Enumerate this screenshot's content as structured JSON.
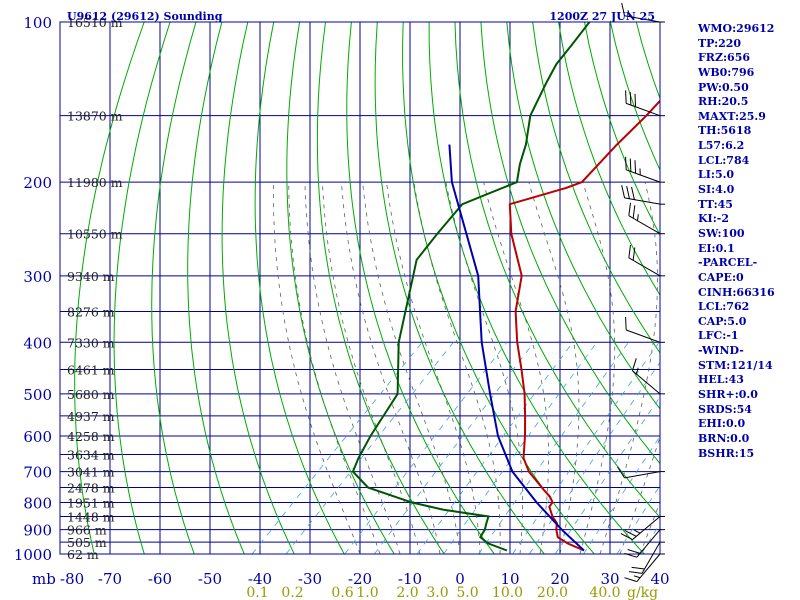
{
  "header": {
    "title": "U9612 (29612) Sounding",
    "time": "1200Z 27 JUN 25"
  },
  "stats": [
    "WMO:29612",
    "TP:220",
    "FRZ:656",
    "WB0:796",
    "PW:0.50",
    "RH:20.5",
    "MAXT:25.9",
    "TH:5618",
    "L57:6.2",
    "LCL:784",
    "LI:5.0",
    "SI:4.0",
    "TT:45",
    "KI:-2",
    "SW:100",
    "EI:0.1",
    "-PARCEL-",
    "CAPE:0",
    "CINH:66316",
    "LCL:762",
    "CAP:5.0",
    "LFC:-1",
    "-WIND-",
    "STM:121/14",
    "HEL:43",
    "SHR+:0.0",
    "SRDS:54",
    "EHI:0.0",
    "BRN:0.0",
    "BSHR:15"
  ],
  "colors": {
    "frame": "#0000aa",
    "isotherm": "#00009a",
    "dry_adiabat": "#00aa00",
    "moist_adiabat": "#556655",
    "mixing_ratio": "#4aa0d0",
    "temperature": "#bb0000",
    "dewpoint": "#005500",
    "parcel": "#0000aa",
    "wind_barb": "#000000",
    "mixing_label": "#999900"
  },
  "chart_data": {
    "type": "skew-t",
    "x_axis_unit_label": "mb",
    "x_ticks": [
      -80,
      -70,
      -60,
      -50,
      -40,
      -30,
      -20,
      -10,
      0,
      10,
      20,
      30,
      40
    ],
    "pressure_ticks": [
      100,
      200,
      300,
      400,
      500,
      600,
      700,
      800,
      900,
      1000
    ],
    "pressure_range": [
      100,
      1000
    ],
    "temperature_range_at_1000mb": [
      -80,
      40
    ],
    "height_labels": [
      {
        "p": 100,
        "label": "16510 m"
      },
      {
        "p": 150,
        "label": "13870 m"
      },
      {
        "p": 200,
        "label": "11980 m"
      },
      {
        "p": 250,
        "label": "10550 m"
      },
      {
        "p": 300,
        "label": "9340 m"
      },
      {
        "p": 350,
        "label": "8276 m"
      },
      {
        "p": 400,
        "label": "7330 m"
      },
      {
        "p": 450,
        "label": "6461 m"
      },
      {
        "p": 500,
        "label": "5680 m"
      },
      {
        "p": 550,
        "label": "4937 m"
      },
      {
        "p": 600,
        "label": "4258 m"
      },
      {
        "p": 650,
        "label": "3634 m"
      },
      {
        "p": 700,
        "label": "3041 m"
      },
      {
        "p": 750,
        "label": "2478 m"
      },
      {
        "p": 800,
        "label": "1951 m"
      },
      {
        "p": 850,
        "label": "1448 m"
      },
      {
        "p": 900,
        "label": "966 m"
      },
      {
        "p": 950,
        "label": "505 m"
      },
      {
        "p": 1000,
        "label": "62 m"
      }
    ],
    "mixing_ratio_labels": [
      {
        "label": "0.1",
        "t": -40.5
      },
      {
        "label": "0.2",
        "t": -33.5
      },
      {
        "label": "0.6",
        "t": -23.5
      },
      {
        "label": "1.0",
        "t": -18.5
      },
      {
        "label": "2.0",
        "t": -10.5
      },
      {
        "label": "3.0",
        "t": -4.5
      },
      {
        "label": "5.0",
        "t": 1.5
      },
      {
        "label": "10.0",
        "t": 9.5
      },
      {
        "label": "20.0",
        "t": 18.5
      },
      {
        "label": "40.0",
        "t": 29.0
      }
    ],
    "mixing_ratio_unit": "g/kg",
    "series": [
      {
        "id": "temperature",
        "points": [
          {
            "p": 985,
            "t": 24.1
          },
          {
            "p": 955,
            "t": 19.4
          },
          {
            "p": 930,
            "t": 16.2
          },
          {
            "p": 900,
            "t": 14.4
          },
          {
            "p": 875,
            "t": 13.2
          },
          {
            "p": 850,
            "t": 11.0
          },
          {
            "p": 815,
            "t": 8.4
          },
          {
            "p": 800,
            "t": 8.2
          },
          {
            "p": 780,
            "t": 6.5
          },
          {
            "p": 760,
            "t": 4.2
          },
          {
            "p": 700,
            "t": -2.7
          },
          {
            "p": 660,
            "t": -6.5
          },
          {
            "p": 600,
            "t": -10.6
          },
          {
            "p": 550,
            "t": -14.6
          },
          {
            "p": 500,
            "t": -19.1
          },
          {
            "p": 450,
            "t": -24.6
          },
          {
            "p": 400,
            "t": -30.9
          },
          {
            "p": 350,
            "t": -37.4
          },
          {
            "p": 300,
            "t": -43.3
          },
          {
            "p": 250,
            "t": -53.8
          },
          {
            "p": 220,
            "t": -60.0
          },
          {
            "p": 205,
            "t": -52.0
          },
          {
            "p": 200,
            "t": -50.0
          },
          {
            "p": 170,
            "t": -50.5
          },
          {
            "p": 150,
            "t": -50.4
          },
          {
            "p": 130,
            "t": -50.9
          },
          {
            "p": 110,
            "t": -52.0
          },
          {
            "p": 100,
            "t": -52.0
          }
        ]
      },
      {
        "id": "dewpoint",
        "points": [
          {
            "p": 985,
            "t": 8.7
          },
          {
            "p": 955,
            "t": 3.5
          },
          {
            "p": 930,
            "t": 0.7
          },
          {
            "p": 900,
            "t": 0.1
          },
          {
            "p": 875,
            "t": -0.9
          },
          {
            "p": 850,
            "t": -1.8
          },
          {
            "p": 825,
            "t": -12.3
          },
          {
            "p": 800,
            "t": -20.0
          },
          {
            "p": 750,
            "t": -31.7
          },
          {
            "p": 700,
            "t": -37.9
          },
          {
            "p": 660,
            "t": -39.5
          },
          {
            "p": 600,
            "t": -41.5
          },
          {
            "p": 500,
            "t": -44.5
          },
          {
            "p": 400,
            "t": -54.6
          },
          {
            "p": 300,
            "t": -65.0
          },
          {
            "p": 280,
            "t": -67.5
          },
          {
            "p": 250,
            "t": -68.6
          },
          {
            "p": 220,
            "t": -69.5
          },
          {
            "p": 200,
            "t": -63.0
          },
          {
            "p": 185,
            "t": -66.0
          },
          {
            "p": 170,
            "t": -68.7
          },
          {
            "p": 150,
            "t": -73.6
          },
          {
            "p": 130,
            "t": -77.0
          },
          {
            "p": 120,
            "t": -78.7
          },
          {
            "p": 110,
            "t": -79.5
          },
          {
            "p": 100,
            "t": -80.5
          }
        ]
      },
      {
        "id": "parcel",
        "points": [
          {
            "p": 985,
            "t": 24.1
          },
          {
            "p": 900,
            "t": 15.5
          },
          {
            "p": 800,
            "t": 5.0
          },
          {
            "p": 700,
            "t": -6.0
          },
          {
            "p": 600,
            "t": -16.0
          },
          {
            "p": 500,
            "t": -26.0
          },
          {
            "p": 400,
            "t": -38.0
          },
          {
            "p": 300,
            "t": -52.0
          },
          {
            "p": 200,
            "t": -76.0
          },
          {
            "p": 170,
            "t": -84.0
          }
        ]
      }
    ],
    "wind_barbs": [
      {
        "p": 100,
        "dir": 280,
        "kt": 15
      },
      {
        "p": 150,
        "dir": 290,
        "kt": 30
      },
      {
        "p": 200,
        "dir": 290,
        "kt": 35
      },
      {
        "p": 220,
        "dir": 280,
        "kt": 30
      },
      {
        "p": 250,
        "dir": 300,
        "kt": 25
      },
      {
        "p": 300,
        "dir": 300,
        "kt": 20
      },
      {
        "p": 400,
        "dir": 290,
        "kt": 10
      },
      {
        "p": 500,
        "dir": 310,
        "kt": 15
      },
      {
        "p": 700,
        "dir": 260,
        "kt": 10
      },
      {
        "p": 850,
        "dir": 230,
        "kt": 25
      },
      {
        "p": 900,
        "dir": 220,
        "kt": 20
      },
      {
        "p": 950,
        "dir": 210,
        "kt": 20
      },
      {
        "p": 1000,
        "dir": 220,
        "kt": 15
      }
    ]
  }
}
